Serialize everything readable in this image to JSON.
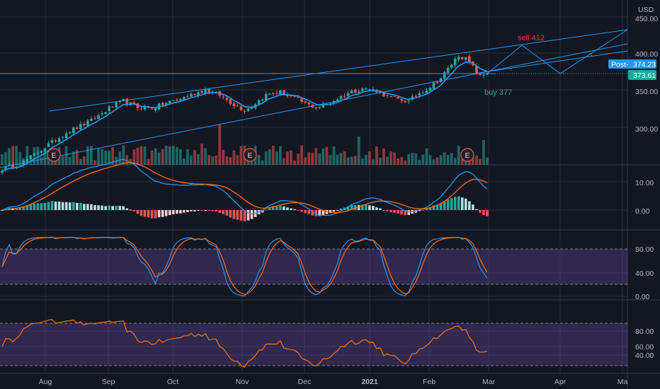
{
  "chart_data": {
    "type": "candlestick",
    "currency_label": "USD",
    "x_axis": {
      "ticks": [
        "Aug",
        "Sep",
        "Oct",
        "Nov",
        "Dec",
        "2021",
        "Feb",
        "Mar",
        "Apr",
        "Ma"
      ]
    },
    "price_axis": {
      "ticks": [
        "450.00",
        "400.00",
        "350.00",
        "300.00"
      ],
      "range": [
        240,
        455
      ]
    },
    "price_tags": {
      "post": {
        "label": "Post",
        "value": "374.23",
        "color": "#2196f3"
      },
      "last": {
        "value": "373.61",
        "color": "#26a69a"
      }
    },
    "annotations": {
      "sell": {
        "text": "sell 412",
        "color": "#f23645"
      },
      "buy": {
        "text": "buy 377",
        "color": "#26a69a"
      }
    },
    "event_markers": [
      "E",
      "E",
      "E"
    ],
    "macd_axis": {
      "ticks": [
        "10.00",
        "0.00"
      ]
    },
    "stoch_axis": {
      "ticks": [
        "80.00",
        "40.00",
        "0.00"
      ]
    },
    "rsi_axis": {
      "ticks": [
        "80.00",
        "60.00",
        "40.00"
      ]
    },
    "price_keypoints": [
      [
        0,
        242
      ],
      [
        6,
        252
      ],
      [
        12,
        272
      ],
      [
        18,
        292
      ],
      [
        25,
        308
      ],
      [
        30,
        325
      ],
      [
        34,
        335
      ],
      [
        38,
        326
      ],
      [
        42,
        325
      ],
      [
        46,
        332
      ],
      [
        50,
        338
      ],
      [
        54,
        345
      ],
      [
        57,
        350
      ],
      [
        61,
        343
      ],
      [
        65,
        330
      ],
      [
        68,
        322
      ],
      [
        70,
        328
      ],
      [
        74,
        343
      ],
      [
        78,
        347
      ],
      [
        82,
        339
      ],
      [
        85,
        331
      ],
      [
        88,
        326
      ],
      [
        91,
        330
      ],
      [
        94,
        338
      ],
      [
        97,
        346
      ],
      [
        101,
        352
      ],
      [
        105,
        349
      ],
      [
        108,
        341
      ],
      [
        111,
        337
      ],
      [
        114,
        334
      ],
      [
        117,
        346
      ],
      [
        120,
        354
      ],
      [
        123,
        366
      ],
      [
        126,
        385
      ],
      [
        128,
        397
      ],
      [
        130,
        392
      ],
      [
        132,
        381
      ],
      [
        134,
        368
      ],
      [
        136,
        373
      ]
    ],
    "volume_bar_count": 137,
    "colors": {
      "up": "#26a69a",
      "down": "#ef5350",
      "ma": "#2196f3",
      "signal": "#ff6d00",
      "band": "#7e57c2",
      "channel": "#2196f3",
      "grid": "#2a2e39",
      "background": "#131722"
    }
  }
}
